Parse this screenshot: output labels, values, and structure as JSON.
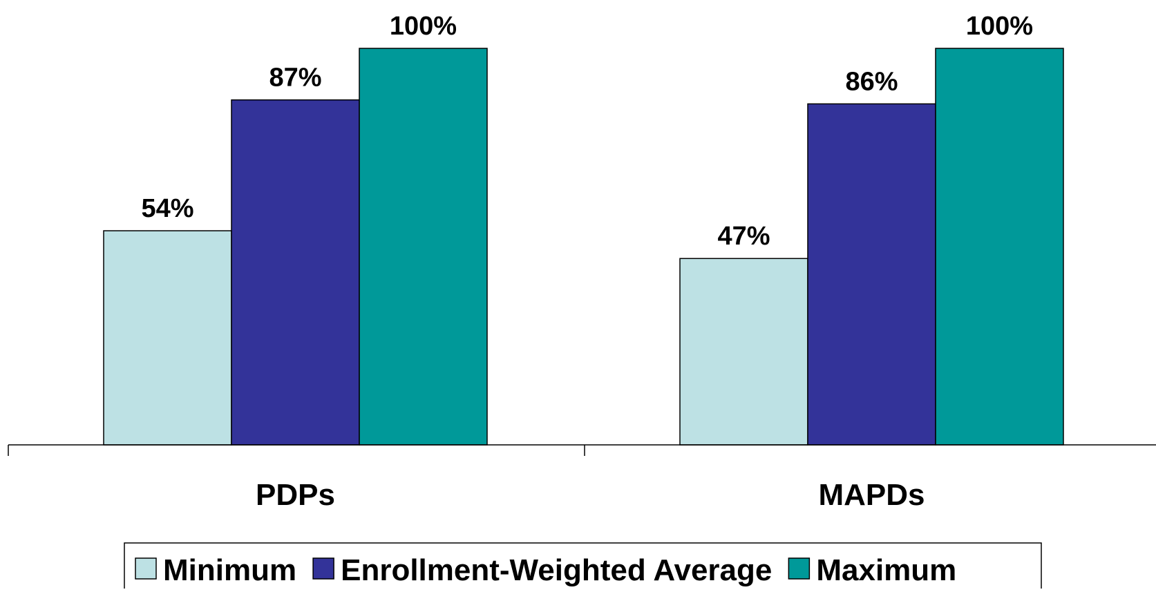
{
  "chart_data": {
    "type": "bar",
    "title": "",
    "xlabel": "",
    "ylabel": "",
    "categories": [
      "PDPs",
      "MAPDs"
    ],
    "series": [
      {
        "name": "Minimum",
        "values": [
          54,
          47
        ],
        "color": "#BDE1E4"
      },
      {
        "name": "Enrollment-Weighted Average",
        "values": [
          87,
          86
        ],
        "color": "#333399"
      },
      {
        "name": "Maximum",
        "values": [
          100,
          100
        ],
        "color": "#009999"
      }
    ],
    "value_suffix": "%",
    "ylim": [
      0,
      100
    ],
    "grid": false,
    "legend_position": "bottom"
  }
}
